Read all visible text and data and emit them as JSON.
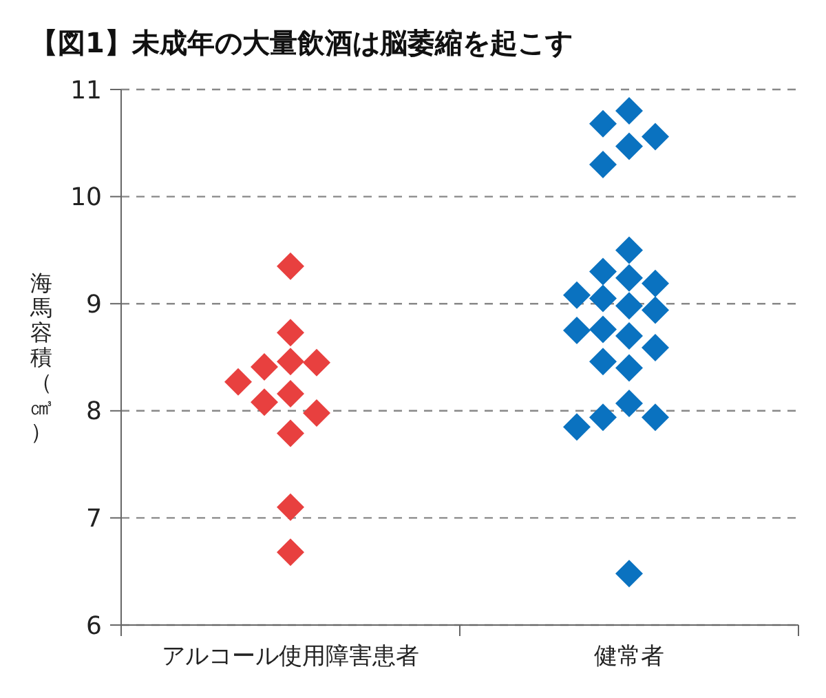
{
  "chart_data": {
    "type": "scatter",
    "title": "【図1】未成年の大量飲酒は脳萎縮を起こす",
    "ylabel": "海馬容積（㎤）",
    "categories": [
      "アルコール使用障害患者",
      "健常者"
    ],
    "ylim": [
      6,
      11
    ],
    "yticks": [
      6,
      7,
      8,
      9,
      10,
      11
    ],
    "grid": "y",
    "marker": "diamond",
    "series": [
      {
        "color": "#e8403f",
        "x": [
          "アルコール使用障害患者",
          "アルコール使用障害患者",
          "アルコール使用障害患者",
          "アルコール使用障害患者",
          "アルコール使用障害患者",
          "アルコール使用障害患者",
          "アルコール使用障害患者",
          "アルコール使用障害患者",
          "アルコール使用障害患者",
          "アルコール使用障害患者",
          "アルコール使用障害患者",
          "アルコール使用障害患者"
        ],
        "values": [
          9.35,
          8.73,
          8.46,
          8.41,
          8.45,
          8.27,
          8.16,
          8.08,
          7.98,
          7.79,
          7.1,
          6.68
        ]
      },
      {
        "color": "#0a72c0",
        "x": [
          "健常者",
          "健常者",
          "健常者",
          "健常者",
          "健常者",
          "健常者",
          "健常者",
          "健常者",
          "健常者",
          "健常者",
          "健常者",
          "健常者",
          "健常者",
          "健常者",
          "健常者",
          "健常者",
          "健常者",
          "健常者",
          "健常者",
          "健常者",
          "健常者",
          "健常者",
          "健常者",
          "健常者"
        ],
        "values": [
          10.8,
          10.68,
          10.56,
          10.47,
          10.3,
          9.5,
          9.3,
          9.24,
          9.19,
          9.08,
          9.05,
          8.98,
          8.94,
          8.76,
          8.75,
          8.7,
          8.59,
          8.46,
          8.4,
          8.07,
          7.94,
          7.94,
          7.85,
          6.48
        ]
      }
    ]
  }
}
